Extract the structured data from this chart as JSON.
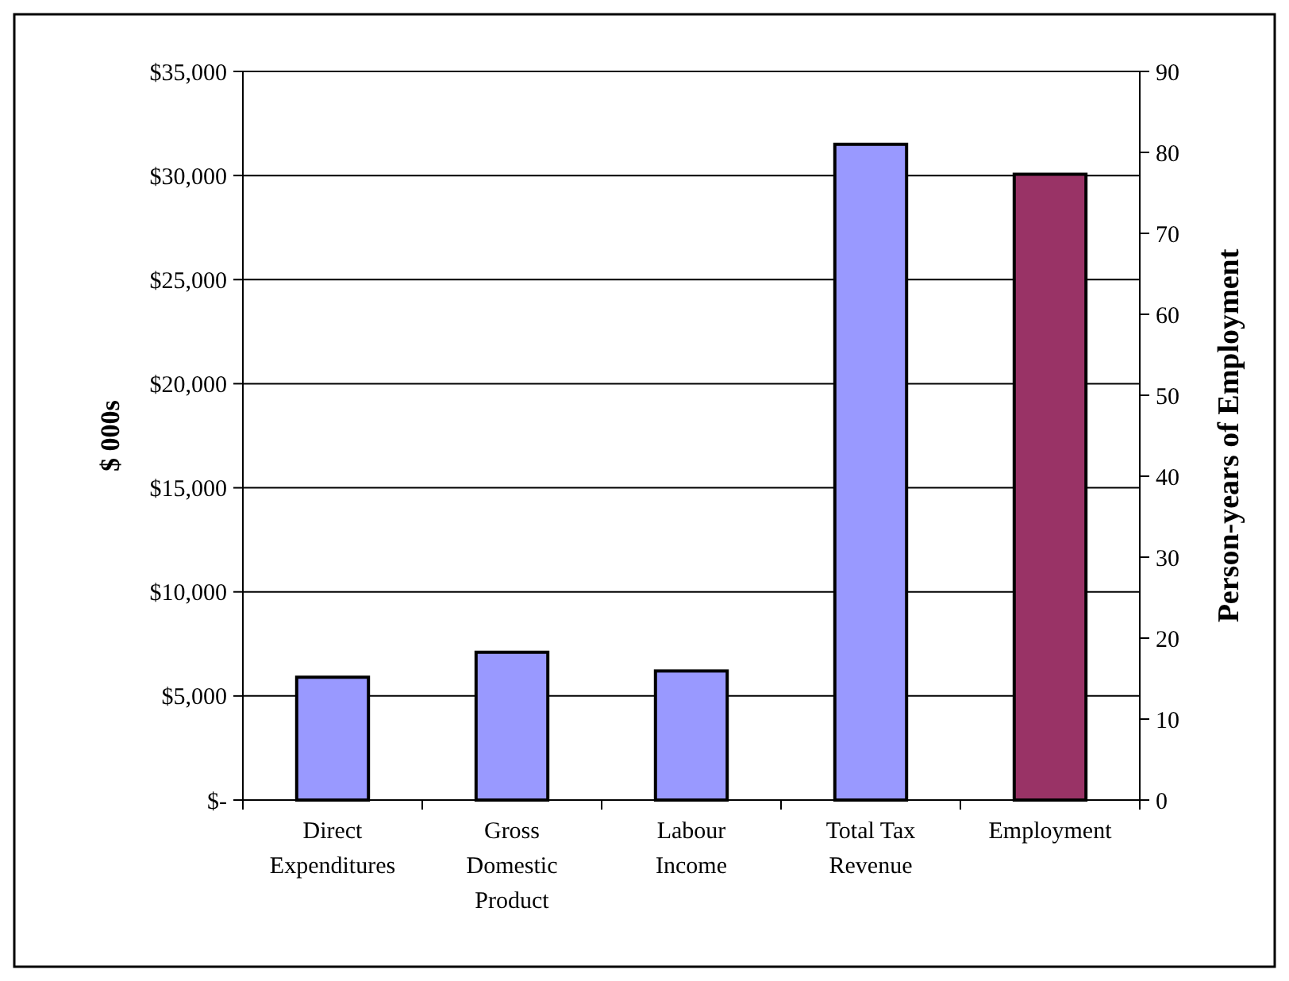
{
  "chart_data": {
    "type": "bar",
    "ylabel": "$ 000s",
    "y2label": "Person-years of Employment",
    "categories": [
      "Direct Expenditures",
      "Gross Domestic Product",
      "Labour Income",
      "Total Tax Revenue",
      "Employment"
    ],
    "series": [
      {
        "color": "#9999ff",
        "values": [
          5900,
          7100,
          6200,
          31500,
          null
        ]
      },
      {
        "color": "#993366",
        "axis": "y2",
        "values": [
          null,
          null,
          null,
          null,
          77.3
        ]
      }
    ],
    "ylim": [
      0,
      35000
    ],
    "yticks": [
      {
        "value": 0,
        "label": "$-"
      },
      {
        "value": 5000,
        "label": "$5,000"
      },
      {
        "value": 10000,
        "label": "$10,000"
      },
      {
        "value": 15000,
        "label": "$15,000"
      },
      {
        "value": 20000,
        "label": "$20,000"
      },
      {
        "value": 25000,
        "label": "$25,000"
      },
      {
        "value": 30000,
        "label": "$30,000"
      },
      {
        "value": 35000,
        "label": "$35,000"
      }
    ],
    "y2lim": [
      0,
      90
    ],
    "y2ticks": [
      0,
      10,
      20,
      30,
      40,
      50,
      60,
      70,
      80,
      90
    ],
    "grid": "y"
  }
}
